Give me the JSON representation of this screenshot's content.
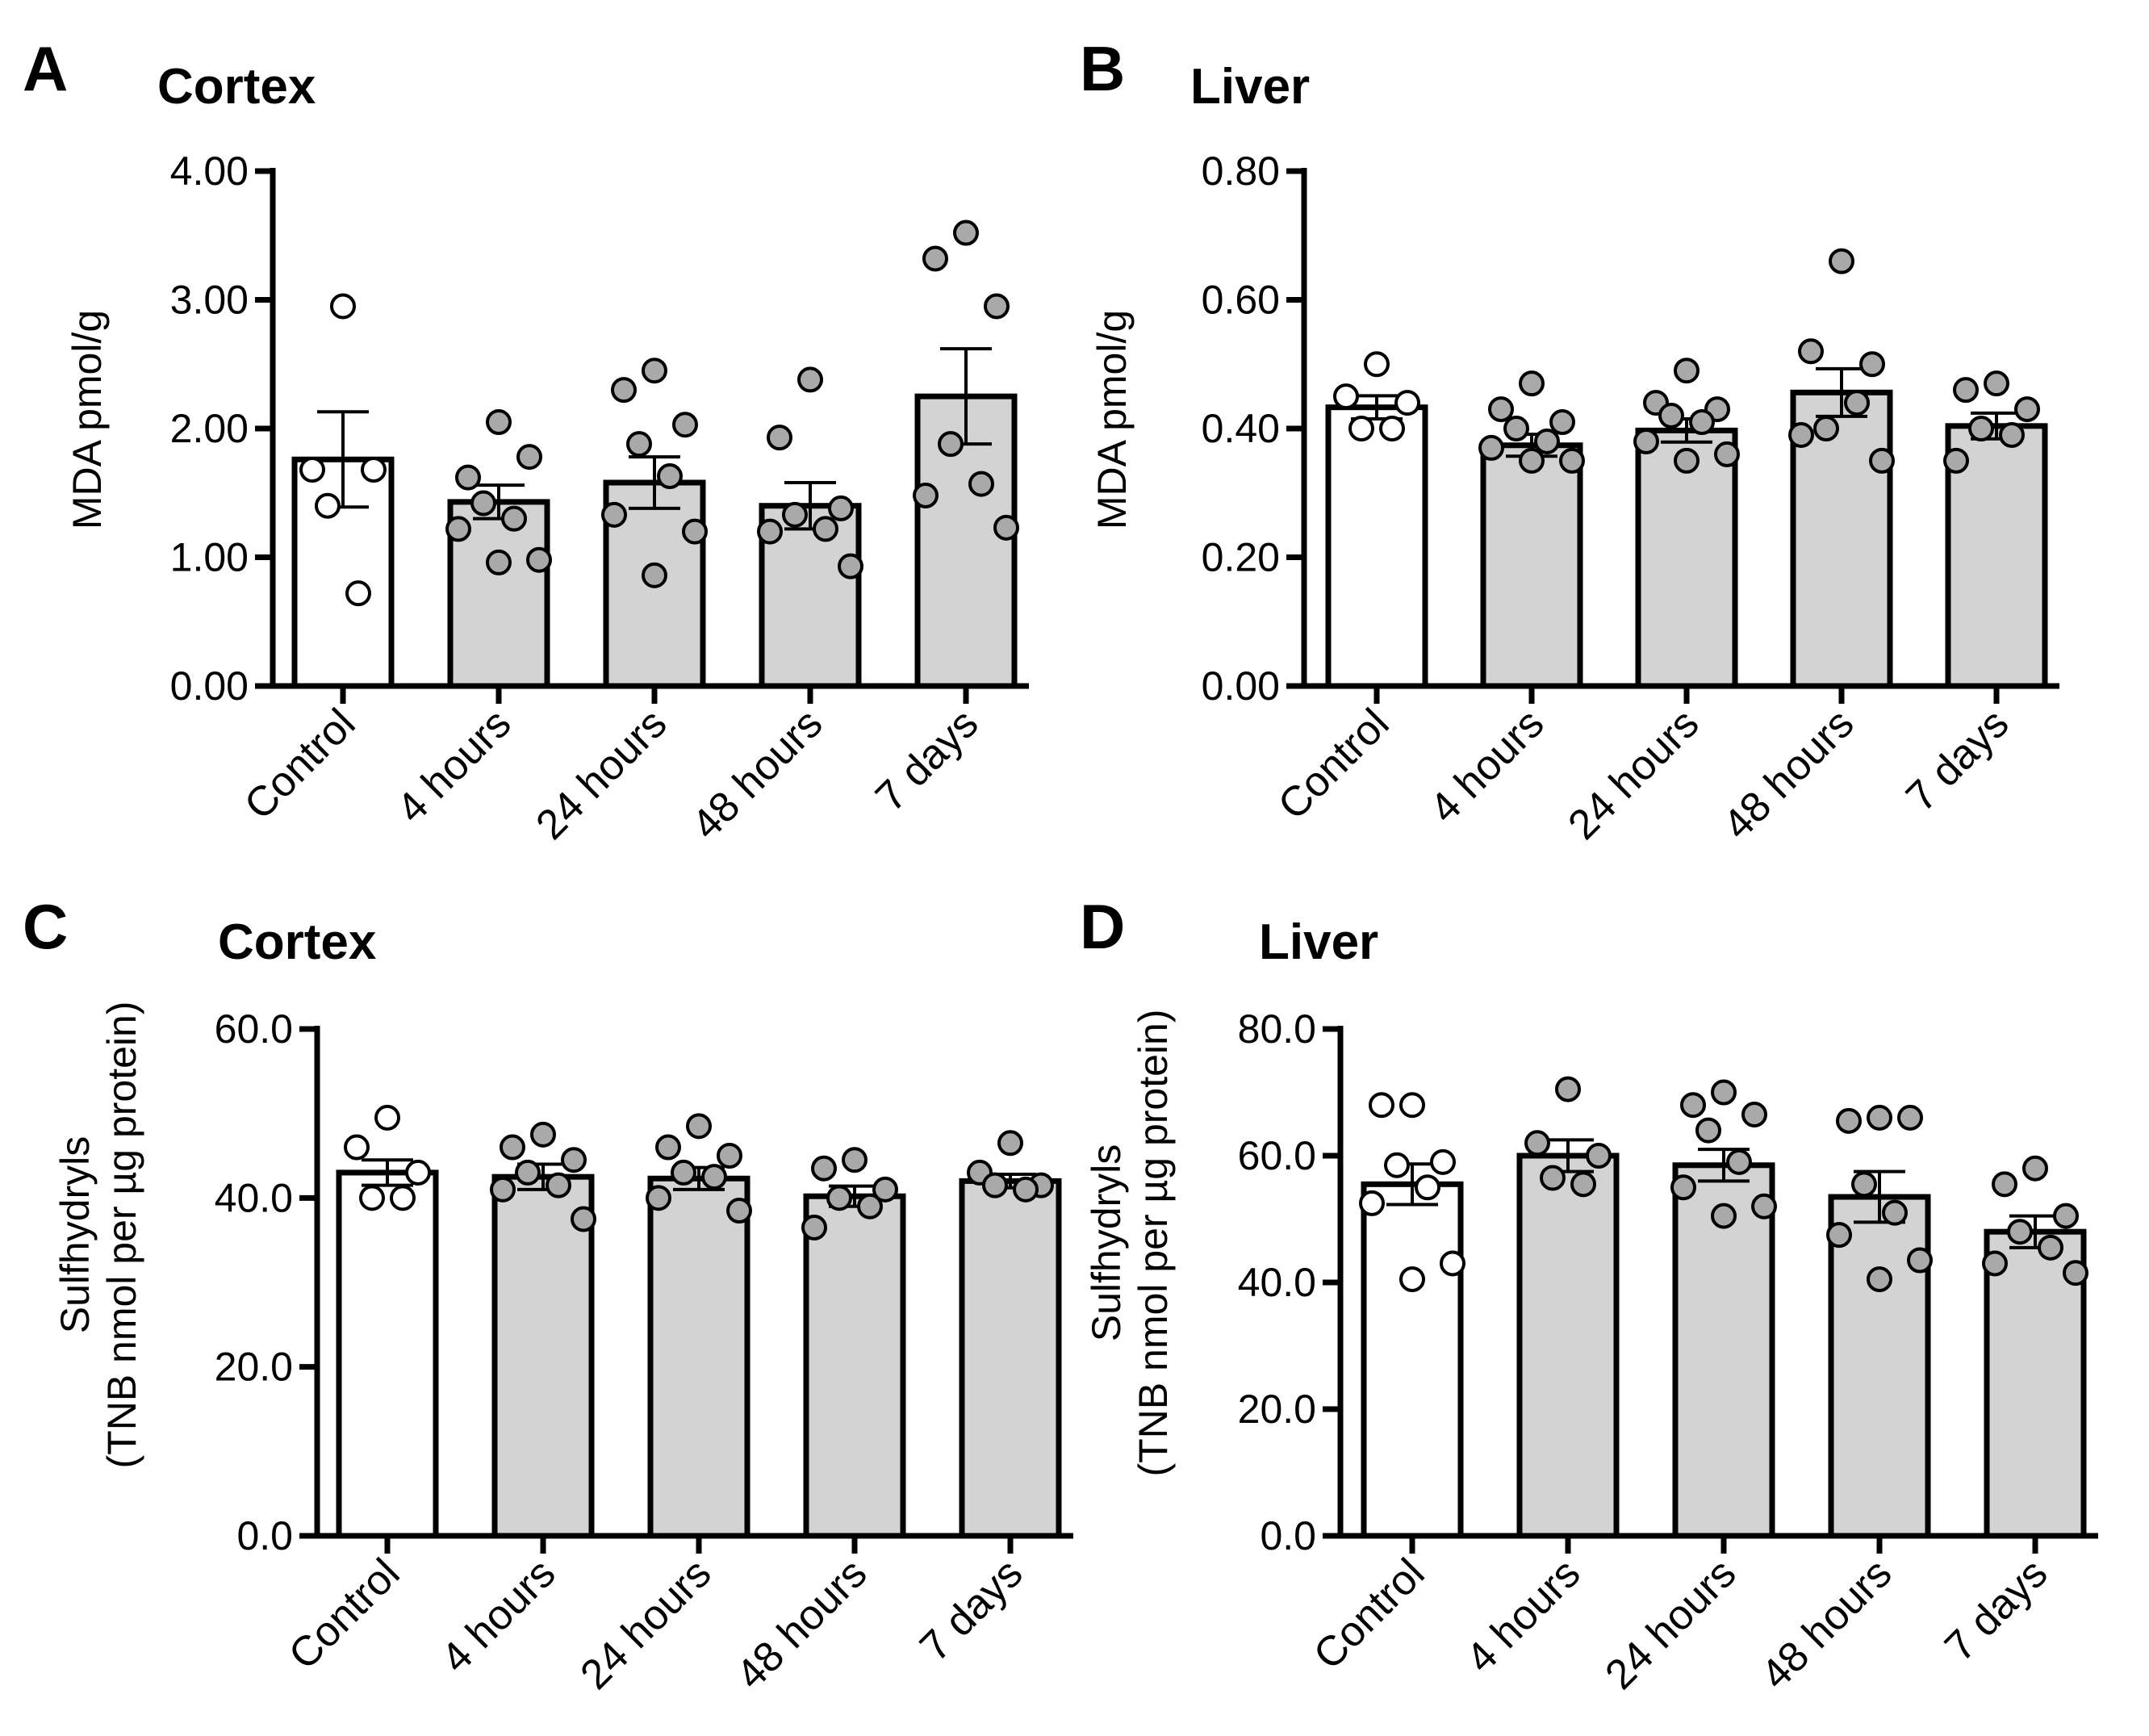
{
  "figure": {
    "description_shown": false
  },
  "chart_data": [
    {
      "id": "A",
      "type": "bar",
      "panel_letter": "A",
      "title": "Cortex",
      "ylabel": "MDA pmol/g",
      "ylabel_lines": [
        "MDA pmol/g"
      ],
      "xlabel": "",
      "categories": [
        "Control",
        "4 hours",
        "24 hours",
        "48 hours",
        "7 days"
      ],
      "ylim": [
        0,
        4
      ],
      "yticks": [
        0,
        1,
        2,
        3,
        4
      ],
      "ytick_labels": [
        "0.00",
        "1.00",
        "2.00",
        "3.00",
        "4.00"
      ],
      "bar_fill": [
        "#ffffff",
        "#d3d3d3",
        "#d3d3d3",
        "#d3d3d3",
        "#d3d3d3"
      ],
      "point_fill": [
        "#ffffff",
        "#a9a9a9",
        "#a9a9a9",
        "#a9a9a9",
        "#a9a9a9"
      ],
      "means": [
        1.76,
        1.43,
        1.58,
        1.4,
        2.25
      ],
      "sem": [
        0.37,
        0.13,
        0.2,
        0.18,
        0.37
      ],
      "points": [
        [
          2.95,
          1.68,
          1.68,
          1.4,
          0.72
        ],
        [
          2.05,
          1.62,
          1.78,
          1.42,
          1.3,
          1.22,
          0.98,
          0.96
        ],
        [
          2.45,
          2.3,
          2.03,
          1.88,
          1.63,
          1.33,
          1.2,
          0.86
        ],
        [
          2.38,
          1.93,
          1.38,
          1.33,
          1.22,
          1.2,
          0.93
        ],
        [
          3.52,
          3.32,
          2.95,
          1.88,
          1.57,
          1.48,
          1.23
        ]
      ]
    },
    {
      "id": "B",
      "type": "bar",
      "panel_letter": "B",
      "title": "Liver",
      "ylabel": "MDA pmol/g",
      "ylabel_lines": [
        "MDA pmol/g"
      ],
      "xlabel": "",
      "categories": [
        "Control",
        "4 hours",
        "24 hours",
        "48 hours",
        "7 days"
      ],
      "ylim": [
        0,
        0.8
      ],
      "yticks": [
        0,
        0.2,
        0.4,
        0.6,
        0.8
      ],
      "ytick_labels": [
        "0.00",
        "0.20",
        "0.40",
        "0.60",
        "0.80"
      ],
      "bar_fill": [
        "#ffffff",
        "#d3d3d3",
        "#d3d3d3",
        "#d3d3d3",
        "#d3d3d3"
      ],
      "point_fill": [
        "#ffffff",
        "#a9a9a9",
        "#a9a9a9",
        "#a9a9a9",
        "#a9a9a9"
      ],
      "means": [
        0.433,
        0.374,
        0.397,
        0.456,
        0.404
      ],
      "sem": [
        0.018,
        0.017,
        0.018,
        0.037,
        0.02
      ],
      "points": [
        [
          0.5,
          0.45,
          0.44,
          0.4,
          0.4
        ],
        [
          0.47,
          0.43,
          0.41,
          0.4,
          0.38,
          0.37,
          0.35,
          0.35
        ],
        [
          0.49,
          0.44,
          0.43,
          0.42,
          0.41,
          0.38,
          0.36,
          0.35
        ],
        [
          0.66,
          0.52,
          0.5,
          0.4,
          0.44,
          0.39,
          0.35
        ],
        [
          0.47,
          0.46,
          0.43,
          0.4,
          0.39,
          0.35
        ]
      ]
    },
    {
      "id": "C",
      "type": "bar",
      "panel_letter": "C",
      "title": "Cortex",
      "ylabel": "Sulfhydryls (TNB nmol per µg protein)",
      "ylabel_lines": [
        "Sulfhydryls",
        "(TNB nmol per µg protein)"
      ],
      "xlabel": "",
      "categories": [
        "Control",
        "4 hours",
        "24 hours",
        "48 hours",
        "7 days"
      ],
      "ylim": [
        0,
        60
      ],
      "yticks": [
        0,
        20,
        40,
        60
      ],
      "ytick_labels": [
        "0.0",
        "20.0",
        "40.0",
        "60.0"
      ],
      "bar_fill": [
        "#ffffff",
        "#d3d3d3",
        "#d3d3d3",
        "#d3d3d3",
        "#d3d3d3"
      ],
      "point_fill": [
        "#ffffff",
        "#a9a9a9",
        "#a9a9a9",
        "#a9a9a9",
        "#a9a9a9"
      ],
      "means": [
        43.0,
        42.5,
        42.3,
        40.2,
        42.0
      ],
      "sem": [
        1.5,
        1.5,
        1.3,
        1.2,
        0.8
      ],
      "points": [
        [
          49.5,
          46.0,
          43.0,
          40.0,
          40.0
        ],
        [
          47.5,
          46.0,
          44.5,
          43.0,
          41.5,
          41.0,
          37.5
        ],
        [
          48.5,
          46.0,
          45.0,
          43.0,
          42.5,
          40.0,
          38.5
        ],
        [
          44.5,
          43.5,
          41.0,
          40.0,
          39.0,
          36.5
        ],
        [
          46.5,
          43.0,
          41.5,
          41.5,
          41.0
        ]
      ]
    },
    {
      "id": "D",
      "type": "bar",
      "panel_letter": "D",
      "title": "Liver",
      "ylabel": "Sulfhydryls (TNB nmol per µg protein)",
      "ylabel_lines": [
        "Sulfhydryls",
        "(TNB nmol per µg protein)"
      ],
      "xlabel": "",
      "categories": [
        "Control",
        "4 hours",
        "24 hours",
        "48 hours",
        "7 days"
      ],
      "ylim": [
        0,
        80
      ],
      "yticks": [
        0,
        20,
        40,
        60,
        80
      ],
      "ytick_labels": [
        "0.0",
        "20.0",
        "40.0",
        "60.0",
        "80.0"
      ],
      "bar_fill": [
        "#ffffff",
        "#d3d3d3",
        "#d3d3d3",
        "#d3d3d3",
        "#d3d3d3"
      ],
      "point_fill": [
        "#ffffff",
        "#a9a9a9",
        "#a9a9a9",
        "#a9a9a9",
        "#a9a9a9"
      ],
      "means": [
        55.5,
        60.0,
        58.5,
        53.5,
        48.0
      ],
      "sem": [
        3.2,
        2.5,
        2.5,
        4.0,
        2.5
      ],
      "points": [
        [
          68.0,
          68.0,
          59.0,
          58.5,
          55.0,
          52.5,
          43.0,
          40.5
        ],
        [
          70.5,
          62.0,
          60.0,
          56.5,
          55.5
        ],
        [
          70.0,
          68.0,
          66.5,
          64.0,
          59.0,
          55.0,
          52.0,
          50.5
        ],
        [
          66.0,
          65.5,
          66.0,
          55.5,
          51.0,
          47.5,
          43.5,
          40.5
        ],
        [
          58.0,
          55.5,
          50.5,
          48.0,
          45.5,
          43.0,
          41.5
        ]
      ]
    }
  ]
}
